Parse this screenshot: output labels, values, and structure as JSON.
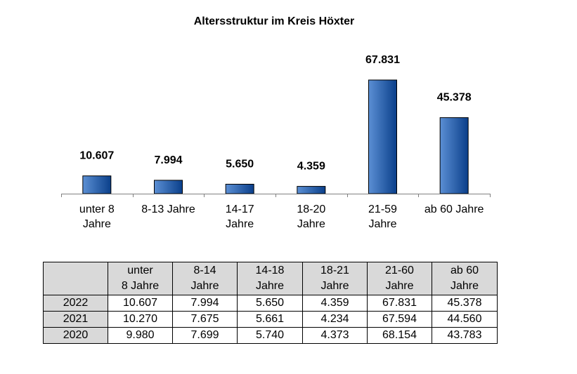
{
  "chart_data": {
    "type": "bar",
    "title": "Altersstruktur im Kreis Höxter",
    "categories": [
      [
        "unter 8",
        "Jahre"
      ],
      [
        "8-13 Jahre"
      ],
      [
        "14-17",
        "Jahre"
      ],
      [
        "18-20",
        "Jahre"
      ],
      [
        "21-59",
        "Jahre"
      ],
      [
        "ab 60 Jahre"
      ]
    ],
    "values": [
      10607,
      7994,
      5650,
      4359,
      67831,
      45378
    ],
    "value_labels": [
      "10.607",
      "7.994",
      "5.650",
      "4.359",
      "67.831",
      "45.378"
    ],
    "xlabel": "",
    "ylabel": "",
    "ylim": [
      0,
      100000
    ],
    "bar_color_light": "#5b8fd4",
    "bar_color_dark": "#0a3f8a"
  },
  "table": {
    "headers": [
      [
        "",
        ""
      ],
      [
        "unter",
        "8 Jahre"
      ],
      [
        "8-14",
        "Jahre"
      ],
      [
        "14-18",
        "Jahre"
      ],
      [
        "18-21",
        "Jahre"
      ],
      [
        "21-60",
        "Jahre"
      ],
      [
        "ab 60",
        "Jahre"
      ]
    ],
    "rows": [
      [
        "2022",
        "10.607",
        "7.994",
        "5.650",
        "4.359",
        "67.831",
        "45.378"
      ],
      [
        "2021",
        "10.270",
        "7.675",
        "5.661",
        "4.234",
        "67.594",
        "44.560"
      ],
      [
        "2020",
        "9.980",
        "7.699",
        "5.740",
        "4.373",
        "68.154",
        "43.783"
      ]
    ]
  }
}
